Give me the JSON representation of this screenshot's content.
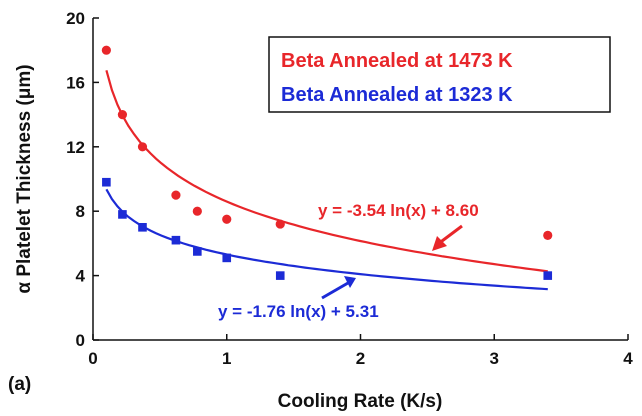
{
  "chart_data": {
    "type": "scatter",
    "panel_label": "(a)",
    "xlabel": "Cooling Rate (K/s)",
    "ylabel": "α Platelet Thickness (μm)",
    "xlim": [
      0,
      4
    ],
    "ylim": [
      0,
      20
    ],
    "x_ticks": [
      "0",
      "1",
      "2",
      "3",
      "4"
    ],
    "y_ticks": [
      "0",
      "4",
      "8",
      "12",
      "16",
      "20"
    ],
    "legend": {
      "placement": "top-right",
      "entries": [
        "Beta Annealed at 1473 K",
        "Beta Annealed at 1323 K"
      ]
    },
    "series": [
      {
        "name": "Beta Annealed at 1473 K",
        "color": "#e8262a",
        "marker": "circle",
        "points": [
          {
            "x": 0.1,
            "y": 18.0
          },
          {
            "x": 0.22,
            "y": 14.0
          },
          {
            "x": 0.37,
            "y": 12.0
          },
          {
            "x": 0.62,
            "y": 9.0
          },
          {
            "x": 0.78,
            "y": 8.0
          },
          {
            "x": 1.0,
            "y": 7.5
          },
          {
            "x": 1.4,
            "y": 7.2
          },
          {
            "x": 3.4,
            "y": 6.5
          }
        ],
        "fit": {
          "a": -3.54,
          "b": 8.6,
          "x_range": [
            0.1,
            3.4
          ]
        },
        "equation": "y = -3.54 ln(x) + 8.60"
      },
      {
        "name": "Beta Annealed at 1323 K",
        "color": "#1c2bd6",
        "marker": "square",
        "points": [
          {
            "x": 0.1,
            "y": 9.8
          },
          {
            "x": 0.22,
            "y": 7.8
          },
          {
            "x": 0.37,
            "y": 7.0
          },
          {
            "x": 0.62,
            "y": 6.2
          },
          {
            "x": 0.78,
            "y": 5.5
          },
          {
            "x": 1.0,
            "y": 5.1
          },
          {
            "x": 1.4,
            "y": 4.0
          },
          {
            "x": 3.4,
            "y": 4.0
          }
        ],
        "fit": {
          "a": -1.76,
          "b": 5.31,
          "x_range": [
            0.1,
            3.4
          ]
        },
        "equation": "y = -1.76 ln(x) + 5.31"
      }
    ]
  }
}
